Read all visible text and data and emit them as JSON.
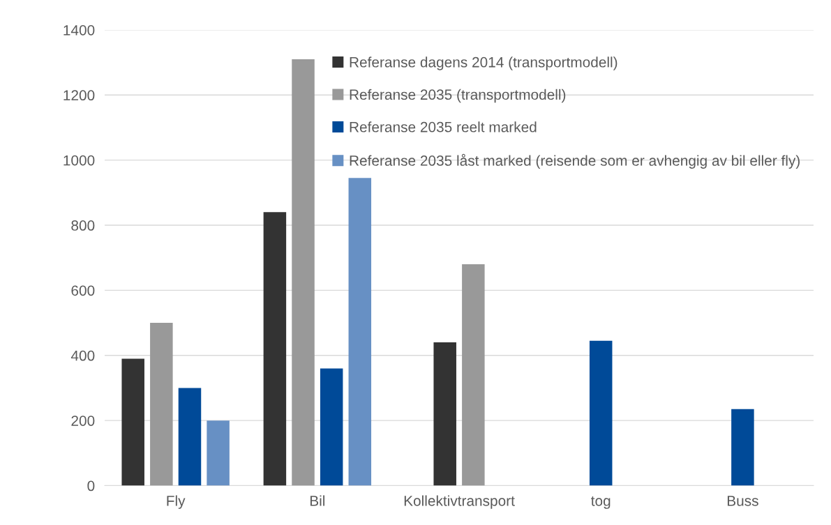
{
  "chart_data": {
    "type": "bar",
    "categories": [
      "Fly",
      "Bil",
      "Kollektivtransport",
      "tog",
      "Buss"
    ],
    "series": [
      {
        "name": "Referanse dagens 2014 (transportmodell)",
        "color": "#333333",
        "values": [
          390,
          840,
          440,
          null,
          null
        ]
      },
      {
        "name": "Referanse 2035 (transportmodell)",
        "color": "#999999",
        "values": [
          500,
          1310,
          680,
          null,
          null
        ]
      },
      {
        "name": "Referanse 2035 reelt marked",
        "color": "#004a98",
        "values": [
          300,
          360,
          null,
          445,
          235
        ]
      },
      {
        "name": "Referanse 2035 låst marked (reisende som er avhengig av bil eller fly)",
        "color": "#6790c4",
        "values": [
          200,
          945,
          null,
          null,
          null
        ]
      }
    ],
    "ylim": [
      0,
      1400
    ],
    "yticks": [
      0,
      200,
      400,
      600,
      800,
      1000,
      1200,
      1400
    ],
    "grid": "y",
    "legend": "top right"
  }
}
